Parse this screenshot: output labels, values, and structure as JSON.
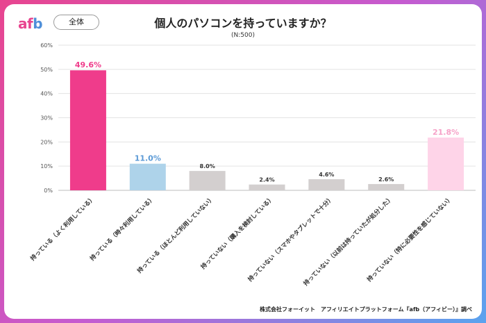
{
  "brand": {
    "logo_main": "af",
    "logo_accent": "b"
  },
  "filter_label": "全体",
  "footer": "株式会社フォーイット　アフィリエイトプラットフォーム『afb（アフィビー）』調べ",
  "colors": {
    "accent": "#ef3c8b",
    "blue": "#aed3ea",
    "gray": "#d3cfcf",
    "light_pink": "#fed4e8"
  },
  "chart_data": {
    "type": "bar",
    "title": "個人のパソコンを持っていますか？",
    "subtitle": "(N:500)",
    "categories": [
      "持っている（よく利用している）",
      "持っている（時々利用している）",
      "持っている（ほとんど利用していない）",
      "持っていない（購入を検討している）",
      "持っていない（スマホやタブレットで十分）",
      "持っていない（以前は持っていたが処分した）",
      "持っていない（特に必要性を感じていない）"
    ],
    "values": [
      49.6,
      11.0,
      8.0,
      2.4,
      4.6,
      2.6,
      21.8
    ],
    "value_labels": [
      "49.6%",
      "11.0%",
      "8.0%",
      "2.4%",
      "4.6%",
      "2.6%",
      "21.8%"
    ],
    "bar_colors": [
      "#ef3c8b",
      "#aed3ea",
      "#d3cfcf",
      "#d3cfcf",
      "#d3cfcf",
      "#d3cfcf",
      "#fed4e8"
    ],
    "label_colors": [
      "#ef3c8b",
      "#5b9ad6",
      "#333333",
      "#333333",
      "#333333",
      "#333333",
      "#f6a2c8"
    ],
    "ylim": [
      0,
      60
    ],
    "yticks": [
      0,
      10,
      20,
      30,
      40,
      50,
      60
    ],
    "ytick_labels": [
      "0%",
      "10%",
      "20%",
      "30%",
      "40%",
      "50%",
      "60%"
    ],
    "grid": true
  }
}
